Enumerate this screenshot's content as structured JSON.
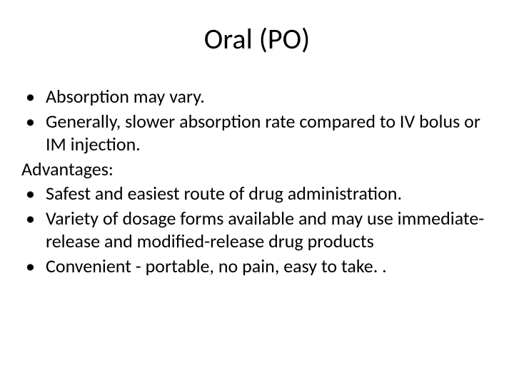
{
  "slide": {
    "title": "Oral (PO)",
    "background_color": "#ffffff",
    "text_color": "#000000",
    "title_fontsize": 40,
    "body_fontsize": 26,
    "font_family": "Calibri",
    "items": [
      {
        "type": "bullet",
        "text": "Absorption may vary."
      },
      {
        "type": "bullet",
        "text": "Generally, slower absorption rate compared to IV bolus or IM injection."
      },
      {
        "type": "plain",
        "text": "Advantages:"
      },
      {
        "type": "bullet",
        "text": "Safest and easiest route of drug administration."
      },
      {
        "type": "bullet",
        "text": "Variety of dosage forms available and may use immediate-release and modified-release drug products"
      },
      {
        "type": "bullet",
        "text": "Convenient - portable, no pain, easy to take. ."
      }
    ],
    "bullet_glyph": "•"
  }
}
